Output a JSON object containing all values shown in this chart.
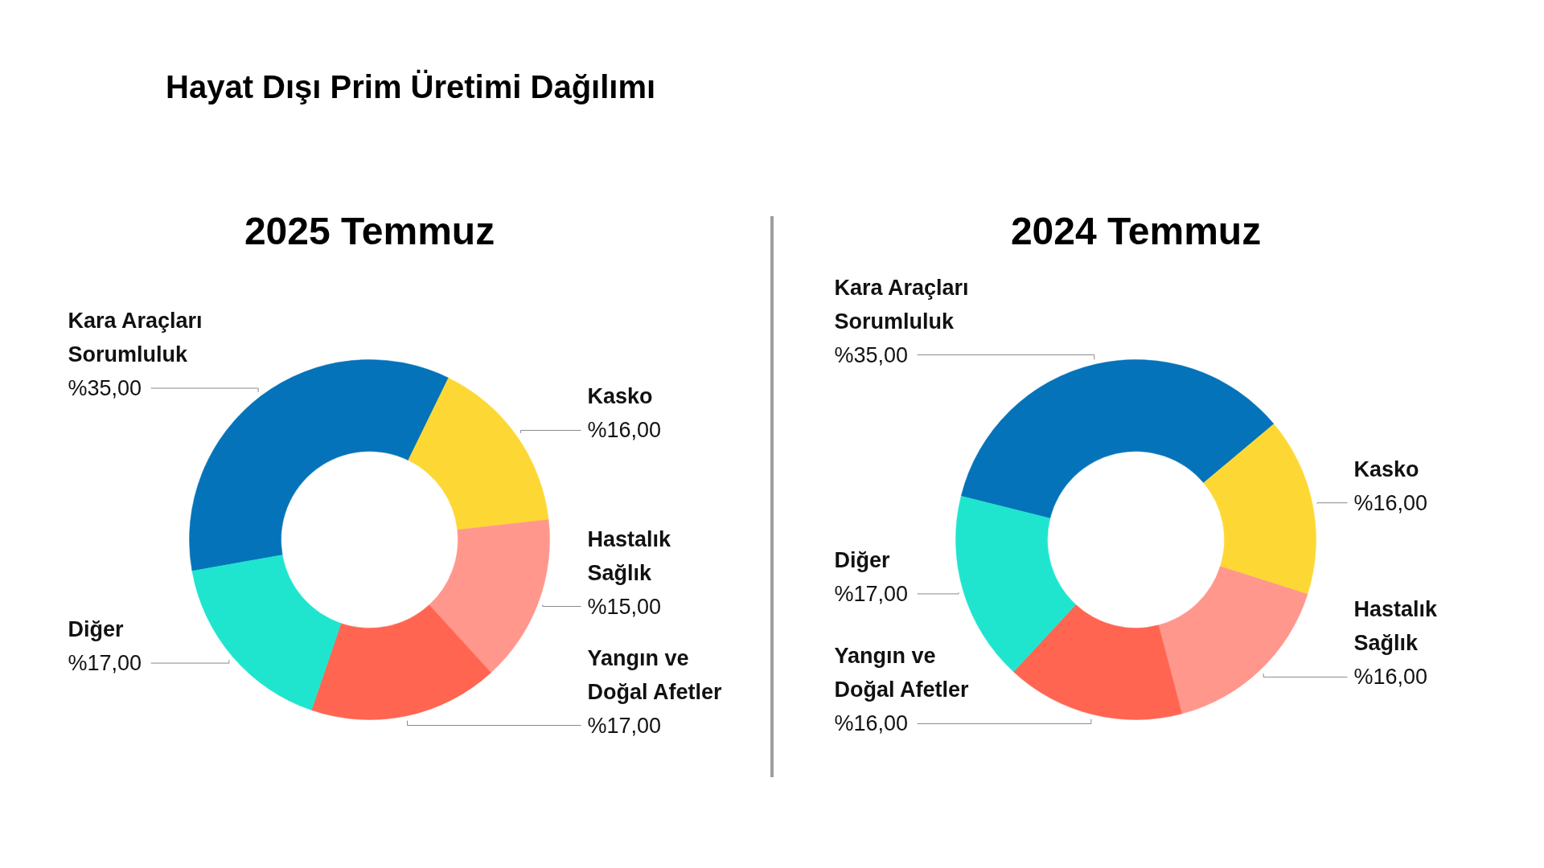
{
  "chart_data": [
    {
      "type": "other",
      "title": "Hayat Dışı Prim Üretimi Dağılımı"
    },
    {
      "type": "donut",
      "title": "2025 Temmuz",
      "categories": [
        "Kara Araçları Sorumluluk",
        "Kasko",
        "Hastalık Sağlık",
        "Yangın ve Doğal Afetler",
        "Diğer"
      ],
      "values": [
        35,
        16,
        15,
        17,
        17
      ],
      "colors": [
        "#0473b9",
        "#fdd835",
        "#ff978c",
        "#ff6551",
        "#1fe5cf"
      ],
      "value_labels": [
        "%35,00",
        "%16,00",
        "%15,00",
        "%17,00",
        "%17,00"
      ]
    },
    {
      "type": "donut",
      "title": "2024 Temmuz",
      "categories": [
        "Kara Araçları Sorumluluk",
        "Kasko",
        "Hastalık Sağlık",
        "Yangın ve Doğal Afetler",
        "Diğer"
      ],
      "values": [
        35,
        16,
        16,
        16,
        17
      ],
      "colors": [
        "#0473b9",
        "#fdd835",
        "#ff978c",
        "#ff6551",
        "#1fe5cf"
      ],
      "value_labels": [
        "%35,00",
        "%16,00",
        "%16,00",
        "%16,00",
        "%17,00"
      ]
    }
  ]
}
